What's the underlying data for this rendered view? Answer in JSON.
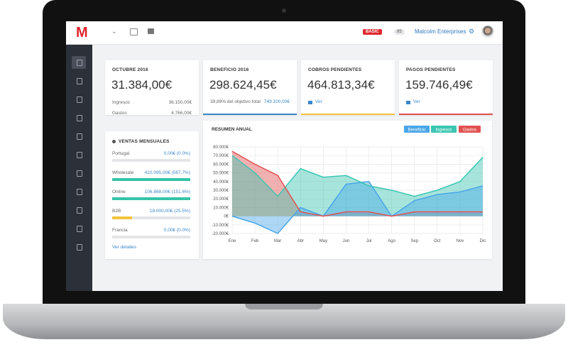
{
  "header": {
    "logo": "M",
    "badge": "BASIC",
    "notifications": "85",
    "company": "Malcolm Enterprises"
  },
  "cards": [
    {
      "title": "OCTUBRE 2016",
      "value": "31.384,00€",
      "rows": [
        {
          "label": "Ingresos",
          "value": "36.150,00€"
        },
        {
          "label": "Gastos",
          "value": "4.766,00€"
        }
      ],
      "color": "#ffffff"
    },
    {
      "title": "BENEFICIO 2016",
      "value": "298.624,45€",
      "rows": [
        {
          "label": "39,88% del objetivo total",
          "value": "749.100,00€"
        }
      ],
      "color": "#3b86c8"
    },
    {
      "title": "COBROS PENDIENTES",
      "value": "464.813,34€",
      "link": "Ver",
      "color": "#f2c43d"
    },
    {
      "title": "PAGOS PENDIENTES",
      "value": "159.746,49€",
      "link": "Ver",
      "color": "#e04e4e"
    }
  ],
  "sales": {
    "title": "VENTAS MENSUALES",
    "link": "Ver detalles",
    "rows": [
      {
        "name": "Portugal",
        "value": "0,00€ (0.0%)",
        "percent": 0.0,
        "color": "#35c3a8"
      },
      {
        "name": "Wholesale",
        "value": "410.095,00€ (587.7%)",
        "percent": 587.7,
        "color": "#35c3a8"
      },
      {
        "name": "Online",
        "value": "106.868,00€ (151.6%)",
        "percent": 151.6,
        "color": "#35c3a8"
      },
      {
        "name": "B2B",
        "value": "18.000,00€ (25.5%)",
        "percent": 25.5,
        "color": "#f2c43d"
      },
      {
        "name": "Francia",
        "value": "0,00€ (0.0%)",
        "percent": 0.0,
        "color": "#35c3a8"
      }
    ]
  },
  "chart": {
    "type": "area",
    "title": "RESUMEN ANUAL",
    "grid": true,
    "categories": [
      "Ene",
      "Feb",
      "Mar",
      "Abr",
      "May",
      "Jun",
      "Jul",
      "Ago",
      "Sep",
      "Oct",
      "Nov",
      "Dic"
    ],
    "series": [
      {
        "name": "Beneficio",
        "color": "#4aa6e8",
        "values": [
          0,
          -8000,
          -20000,
          10000,
          0,
          37000,
          40000,
          0,
          18000,
          25000,
          28000,
          35000
        ]
      },
      {
        "name": "Ingresos",
        "color": "#3cc6b2",
        "values": [
          70000,
          50000,
          23000,
          55000,
          45000,
          47000,
          35000,
          30000,
          23000,
          30000,
          40000,
          68000
        ]
      },
      {
        "name": "Gastos",
        "color": "#e25252",
        "values": [
          75000,
          60000,
          47000,
          5000,
          0,
          5000,
          5000,
          0,
          5000,
          5000,
          5000,
          5000
        ]
      }
    ],
    "ylim": [
      -20000,
      80000
    ],
    "yticks": [
      {
        "value": -20000,
        "label": "-20.000€"
      },
      {
        "value": -10000,
        "label": "-10.000€"
      },
      {
        "value": 0,
        "label": "0€"
      },
      {
        "value": 10000,
        "label": "10.000€"
      },
      {
        "value": 20000,
        "label": "20.000€"
      },
      {
        "value": 30000,
        "label": "30.000€"
      },
      {
        "value": 40000,
        "label": "40.000€"
      },
      {
        "value": 50000,
        "label": "50.000€"
      },
      {
        "value": 60000,
        "label": "60.000€"
      },
      {
        "value": 70000,
        "label": "70.000€"
      },
      {
        "value": 80000,
        "label": "80.000€"
      }
    ]
  }
}
